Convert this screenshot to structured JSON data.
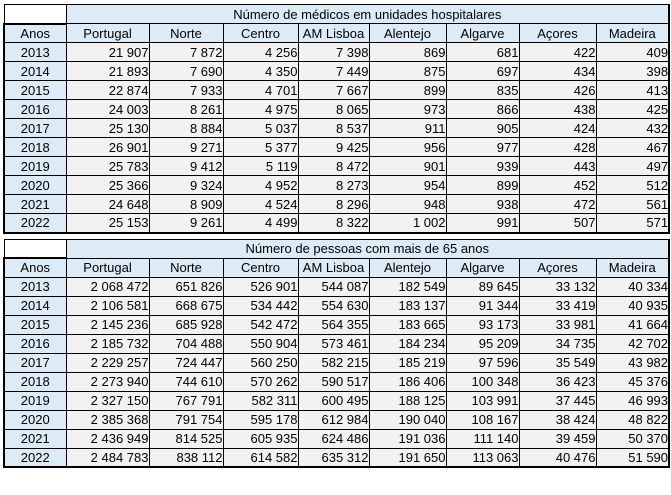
{
  "colors": {
    "header_fill": "#ddebf7",
    "data_fill": "#f2f2f2",
    "border": "#000000",
    "text": "#000000",
    "page_background": "#ffffff"
  },
  "columns": [
    "Anos",
    "Portugal",
    "Norte",
    "Centro",
    "AM Lisboa",
    "Alentejo",
    "Algarve",
    "Açores",
    "Madeira"
  ],
  "tables": [
    {
      "title": "Número de médicos em unidades hospitalares",
      "rows": [
        {
          "year": "2013",
          "values": [
            "21 907",
            "7 872",
            "4 256",
            "7 398",
            "869",
            "681",
            "422",
            "409"
          ]
        },
        {
          "year": "2014",
          "values": [
            "21 893",
            "7 690",
            "4 350",
            "7 449",
            "875",
            "697",
            "434",
            "398"
          ]
        },
        {
          "year": "2015",
          "values": [
            "22 874",
            "7 933",
            "4 701",
            "7 667",
            "899",
            "835",
            "426",
            "413"
          ]
        },
        {
          "year": "2016",
          "values": [
            "24 003",
            "8 261",
            "4 975",
            "8 065",
            "973",
            "866",
            "438",
            "425"
          ]
        },
        {
          "year": "2017",
          "values": [
            "25 130",
            "8 884",
            "5 037",
            "8 537",
            "911",
            "905",
            "424",
            "432"
          ]
        },
        {
          "year": "2018",
          "values": [
            "26 901",
            "9 271",
            "5 377",
            "9 425",
            "956",
            "977",
            "428",
            "467"
          ]
        },
        {
          "year": "2019",
          "values": [
            "25 783",
            "9 412",
            "5 119",
            "8 472",
            "901",
            "939",
            "443",
            "497"
          ]
        },
        {
          "year": "2020",
          "values": [
            "25 366",
            "9 324",
            "4 952",
            "8 273",
            "954",
            "899",
            "452",
            "512"
          ]
        },
        {
          "year": "2021",
          "values": [
            "24 648",
            "8 909",
            "4 524",
            "8 296",
            "948",
            "938",
            "472",
            "561"
          ]
        },
        {
          "year": "2022",
          "values": [
            "25 153",
            "9 261",
            "4 499",
            "8 322",
            "1 002",
            "991",
            "507",
            "571"
          ]
        }
      ]
    },
    {
      "title": "Número de pessoas com mais de 65 anos",
      "rows": [
        {
          "year": "2013",
          "values": [
            "2 068 472",
            "651 826",
            "526 901",
            "544 087",
            "182 549",
            "89 645",
            "33 132",
            "40 334"
          ]
        },
        {
          "year": "2014",
          "values": [
            "2 106 581",
            "668 675",
            "534 442",
            "554 630",
            "183 137",
            "91 344",
            "33 419",
            "40 935"
          ]
        },
        {
          "year": "2015",
          "values": [
            "2 145 236",
            "685 928",
            "542 472",
            "564 355",
            "183 665",
            "93 173",
            "33 981",
            "41 664"
          ]
        },
        {
          "year": "2016",
          "values": [
            "2 185 732",
            "704 488",
            "550 904",
            "573 461",
            "184 234",
            "95 209",
            "34 735",
            "42 702"
          ]
        },
        {
          "year": "2017",
          "values": [
            "2 229 257",
            "724 447",
            "560 250",
            "582 215",
            "185 219",
            "97 596",
            "35 549",
            "43 982"
          ]
        },
        {
          "year": "2018",
          "values": [
            "2 273 940",
            "744 610",
            "570 262",
            "590 517",
            "186 406",
            "100 348",
            "36 423",
            "45 376"
          ]
        },
        {
          "year": "2019",
          "values": [
            "2 327 150",
            "767 791",
            "582 311",
            "600 495",
            "188 125",
            "103 991",
            "37 445",
            "46 993"
          ]
        },
        {
          "year": "2020",
          "values": [
            "2 385 368",
            "791 754",
            "595 178",
            "612 984",
            "190 040",
            "108 167",
            "38 424",
            "48 822"
          ]
        },
        {
          "year": "2021",
          "values": [
            "2 436 949",
            "814 525",
            "605 935",
            "624 486",
            "191 036",
            "111 140",
            "39 459",
            "50 370"
          ]
        },
        {
          "year": "2022",
          "values": [
            "2 484 783",
            "838 112",
            "614 582",
            "635 312",
            "191 650",
            "113 063",
            "40 476",
            "51 590"
          ]
        }
      ]
    }
  ],
  "chart_data": [
    {
      "type": "table",
      "title": "Número de médicos em unidades hospitalares",
      "columns": [
        "Anos",
        "Portugal",
        "Norte",
        "Centro",
        "AM Lisboa",
        "Alentejo",
        "Algarve",
        "Açores",
        "Madeira"
      ],
      "rows": [
        [
          2013,
          21907,
          7872,
          4256,
          7398,
          869,
          681,
          422,
          409
        ],
        [
          2014,
          21893,
          7690,
          4350,
          7449,
          875,
          697,
          434,
          398
        ],
        [
          2015,
          22874,
          7933,
          4701,
          7667,
          899,
          835,
          426,
          413
        ],
        [
          2016,
          24003,
          8261,
          4975,
          8065,
          973,
          866,
          438,
          425
        ],
        [
          2017,
          25130,
          8884,
          5037,
          8537,
          911,
          905,
          424,
          432
        ],
        [
          2018,
          26901,
          9271,
          5377,
          9425,
          956,
          977,
          428,
          467
        ],
        [
          2019,
          25783,
          9412,
          5119,
          8472,
          901,
          939,
          443,
          497
        ],
        [
          2020,
          25366,
          9324,
          4952,
          8273,
          954,
          899,
          452,
          512
        ],
        [
          2021,
          24648,
          8909,
          4524,
          8296,
          948,
          938,
          472,
          561
        ],
        [
          2022,
          25153,
          9261,
          4499,
          8322,
          1002,
          991,
          507,
          571
        ]
      ]
    },
    {
      "type": "table",
      "title": "Número de pessoas com mais de 65 anos",
      "columns": [
        "Anos",
        "Portugal",
        "Norte",
        "Centro",
        "AM Lisboa",
        "Alentejo",
        "Algarve",
        "Açores",
        "Madeira"
      ],
      "rows": [
        [
          2013,
          2068472,
          651826,
          526901,
          544087,
          182549,
          89645,
          33132,
          40334
        ],
        [
          2014,
          2106581,
          668675,
          534442,
          554630,
          183137,
          91344,
          33419,
          40935
        ],
        [
          2015,
          2145236,
          685928,
          542472,
          564355,
          183665,
          93173,
          33981,
          41664
        ],
        [
          2016,
          2185732,
          704488,
          550904,
          573461,
          184234,
          95209,
          34735,
          42702
        ],
        [
          2017,
          2229257,
          724447,
          560250,
          582215,
          185219,
          97596,
          35549,
          43982
        ],
        [
          2018,
          2273940,
          744610,
          570262,
          590517,
          186406,
          100348,
          36423,
          45376
        ],
        [
          2019,
          2327150,
          767791,
          582311,
          600495,
          188125,
          103991,
          37445,
          46993
        ],
        [
          2020,
          2385368,
          791754,
          595178,
          612984,
          190040,
          108167,
          38424,
          48822
        ],
        [
          2021,
          2436949,
          814525,
          605935,
          624486,
          191036,
          111140,
          39459,
          50370
        ],
        [
          2022,
          2484783,
          838112,
          614582,
          635312,
          191650,
          113063,
          40476,
          51590
        ]
      ]
    }
  ]
}
